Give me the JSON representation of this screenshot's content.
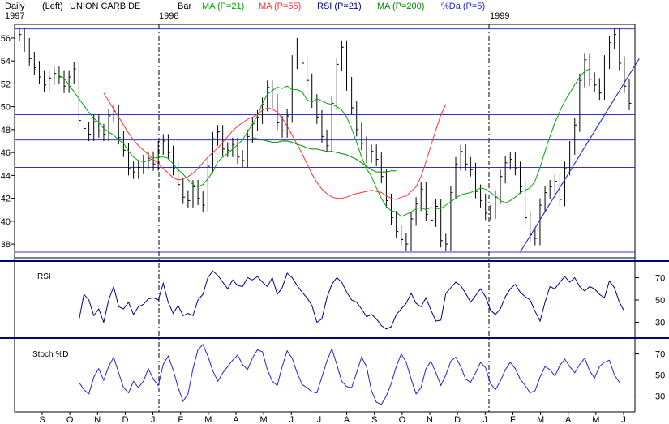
{
  "header": {
    "daily": "Daily",
    "side": "(Left)",
    "symbol": "UNION CARBIDE",
    "bar": "Bar",
    "ma21": "MA (P=21)",
    "ma55": "MA (P=55)",
    "rsi": "RSI (P=21)",
    "ma200": "MA (P=200)",
    "stoch": "%Da (P=5)"
  },
  "years": [
    "1997",
    "1998",
    "1999"
  ],
  "months": [
    "S",
    "O",
    "N",
    "D",
    "J",
    "F",
    "M",
    "A",
    "M",
    "J",
    "J",
    "A",
    "S",
    "O",
    "N",
    "D",
    "J",
    "F",
    "M",
    "A",
    "M",
    "J"
  ],
  "colors": {
    "price": "#000000",
    "ma21": "#00aa00",
    "ma55": "#ff3333",
    "ma200": "#008800",
    "rsi": "#000088",
    "stoch": "#2222dd",
    "trend": "#3333cc",
    "hline": "#3333cc",
    "divider": "#000080"
  },
  "chart_data": [
    {
      "type": "line",
      "panel": "price",
      "title": "UNION CARBIDE",
      "x_labels": [
        "S",
        "O",
        "N",
        "D",
        "J",
        "F",
        "M",
        "A",
        "M",
        "J",
        "J",
        "A",
        "S",
        "O",
        "N",
        "D",
        "J",
        "F",
        "M",
        "A",
        "M",
        "J"
      ],
      "y_ticks": [
        38,
        40,
        42,
        44,
        46,
        48,
        50,
        52,
        54,
        56
      ],
      "ylim": [
        36.8,
        57.2
      ],
      "horizontal_lines": [
        56.8,
        49.3,
        47.1,
        44.7,
        37.3
      ],
      "series": [
        {
          "name": "Bar",
          "kind": "close",
          "values": [
            56.3,
            55.4,
            54.2,
            53.4,
            52.6,
            51.9,
            52.5,
            52.9,
            52.6,
            51.8,
            52.6,
            53.3,
            48.8,
            48.1,
            47.6,
            48.7,
            47.9,
            47.6,
            49.2,
            49.6,
            47.3,
            46.2,
            44.6,
            44.3,
            44.7,
            45.2,
            45.5,
            45.0,
            46.4,
            47.0,
            46.0,
            44.6,
            43.2,
            42.1,
            41.8,
            43.0,
            42.0,
            41.4,
            44.8,
            47.2,
            47.8,
            46.3,
            46.2,
            46.7,
            45.6,
            45.3,
            47.4,
            48.5,
            49.1,
            50.2,
            51.7,
            50.5,
            48.6,
            47.9,
            49.2,
            53.9,
            55.4,
            53.8,
            52.3,
            50.5,
            49.1,
            47.4,
            46.6,
            50.3,
            53.7,
            55.2,
            52.0,
            49.9,
            48.0,
            46.8,
            45.7,
            46.1,
            45.4,
            43.9,
            41.8,
            40.3,
            39.1,
            38.4,
            38.0,
            40.2,
            41.5,
            42.8,
            40.6,
            40.1,
            41.3,
            38.3,
            38.0,
            42.5,
            45.0,
            46.1,
            45.0,
            44.5,
            42.6,
            41.8,
            40.7,
            40.8,
            42.1,
            43.9,
            45.1,
            45.4,
            44.6,
            43.0,
            40.3,
            38.8,
            38.5,
            41.4,
            42.5,
            43.0,
            43.5,
            41.9,
            44.6,
            46.4,
            48.4,
            52.3,
            54.1,
            52.4,
            51.9,
            51.2,
            53.9,
            55.6,
            56.3,
            53.8,
            51.8,
            50.3
          ]
        },
        {
          "name": "MA (P=21)",
          "values": [
            null,
            null,
            null,
            null,
            null,
            null,
            null,
            null,
            52.7,
            52.5,
            51.9,
            51.3,
            50.7,
            50.1,
            49.5,
            49.0,
            48.6,
            48.1,
            47.8,
            47.5,
            47.1,
            46.8,
            46.1,
            45.6,
            45.3,
            45.2,
            45.3,
            45.5,
            45.6,
            45.6,
            45.5,
            45.0,
            44.5,
            44.1,
            43.6,
            43.2,
            43.0,
            43.2,
            43.7,
            44.3,
            45.2,
            45.6,
            45.9,
            46.3,
            46.7,
            47.1,
            47.8,
            48.5,
            49.2,
            50.3,
            51.1,
            51.4,
            51.7,
            51.6,
            51.8,
            51.5,
            51.5,
            51.3,
            50.6,
            50.4,
            50.7,
            50.5,
            50.3,
            50.2,
            50.0,
            49.7,
            49.1,
            48.1,
            46.9,
            45.6,
            44.6,
            43.9,
            42.9,
            42.0,
            41.3,
            40.9,
            40.8,
            40.4,
            40.6,
            40.8,
            41.1,
            41.2,
            41.0,
            41.2,
            41.1,
            41.1,
            41.4,
            41.7,
            42.0,
            42.3,
            42.4,
            42.5,
            42.7,
            42.9,
            42.8,
            42.5,
            42.2,
            41.8,
            41.6,
            41.8,
            42.1,
            42.5,
            42.7,
            42.9,
            43.5,
            44.7,
            46.1,
            47.4,
            48.6,
            49.6,
            50.5,
            51.2,
            51.9,
            52.6,
            53.1,
            53.3
          ]
        },
        {
          "name": "MA (P=55)",
          "values": [
            null,
            null,
            null,
            null,
            null,
            null,
            null,
            null,
            null,
            null,
            null,
            null,
            null,
            null,
            null,
            null,
            null,
            51.2,
            50.5,
            49.8,
            49.1,
            48.4,
            47.7,
            47.1,
            46.6,
            46.2,
            45.8,
            45.4,
            45.0,
            44.6,
            44.2,
            43.8,
            43.6,
            43.7,
            43.9,
            44.2,
            44.6,
            45.1,
            45.6,
            46.0,
            46.4,
            46.9,
            47.4,
            47.9,
            48.3,
            48.6,
            48.9,
            49.1,
            49.3,
            49.7,
            49.9,
            49.8,
            49.5,
            49.0,
            48.3,
            47.5,
            46.7,
            45.9,
            45.0,
            44.1,
            43.4,
            42.8,
            42.4,
            42.1,
            42.0,
            42.0,
            42.1,
            42.3,
            42.4,
            42.5,
            42.6,
            42.7,
            42.6,
            42.5,
            42.2,
            42.0,
            41.9,
            42.1,
            42.2,
            42.6,
            43.0,
            43.9,
            45.2,
            46.6,
            48.0,
            49.3,
            50.2
          ]
        },
        {
          "name": "MA (P=200)",
          "values": [
            null,
            null,
            null,
            null,
            null,
            null,
            null,
            null,
            null,
            null,
            null,
            null,
            null,
            null,
            null,
            null,
            null,
            null,
            null,
            null,
            null,
            null,
            null,
            null,
            null,
            null,
            null,
            null,
            null,
            null,
            null,
            null,
            null,
            null,
            null,
            null,
            null,
            null,
            null,
            null,
            null,
            null,
            null,
            null,
            null,
            null,
            null,
            47.3,
            47.2,
            47.1,
            47.0,
            46.9,
            46.9,
            47.0,
            47.0,
            46.9,
            46.7,
            46.6,
            46.4,
            46.3,
            46.3,
            46.2,
            46.1,
            46.1,
            46.0,
            45.9,
            45.8,
            45.6,
            45.4,
            45.1,
            44.8,
            44.5,
            44.3,
            44.3,
            44.3,
            44.4,
            44.4
          ]
        }
      ],
      "trendlines": [
        {
          "from": [
            101,
            37.3
          ],
          "to": [
            125,
            54.2
          ]
        }
      ]
    },
    {
      "type": "line",
      "panel": "rsi",
      "title": "RSI",
      "y_ticks": [
        30,
        50,
        70
      ],
      "ylim": [
        18,
        82
      ],
      "series": [
        {
          "name": "RSI",
          "values": [
            null,
            null,
            null,
            null,
            null,
            null,
            null,
            null,
            null,
            null,
            null,
            null,
            32,
            55,
            50,
            36,
            42,
            30,
            50,
            62,
            44,
            42,
            48,
            37,
            44,
            46,
            51,
            52,
            50,
            65,
            48,
            38,
            45,
            36,
            38,
            36,
            50,
            55,
            70,
            76,
            72,
            66,
            60,
            68,
            63,
            62,
            70,
            68,
            71,
            66,
            62,
            70,
            55,
            61,
            74,
            70,
            63,
            57,
            52,
            45,
            30,
            33,
            52,
            64,
            70,
            66,
            57,
            50,
            48,
            42,
            35,
            37,
            33,
            27,
            24,
            26,
            37,
            42,
            47,
            56,
            47,
            44,
            52,
            41,
            31,
            32,
            56,
            61,
            66,
            63,
            56,
            48,
            54,
            60,
            53,
            41,
            37,
            42,
            53,
            60,
            64,
            57,
            53,
            50,
            40,
            31,
            48,
            62,
            60,
            66,
            71,
            66,
            70,
            62,
            58,
            62,
            60,
            55,
            52,
            67,
            61,
            48,
            40
          ]
        }
      ]
    },
    {
      "type": "line",
      "panel": "stochastic",
      "title": "Stoch %D",
      "y_ticks": [
        30,
        50,
        70
      ],
      "ylim": [
        18,
        82
      ],
      "series": [
        {
          "name": "%D",
          "values": [
            null,
            null,
            null,
            null,
            null,
            null,
            null,
            null,
            null,
            null,
            null,
            null,
            43,
            36,
            32,
            48,
            56,
            45,
            58,
            67,
            52,
            38,
            33,
            44,
            38,
            44,
            56,
            46,
            40,
            60,
            68,
            55,
            38,
            25,
            32,
            56,
            74,
            79,
            68,
            54,
            44,
            52,
            58,
            64,
            69,
            60,
            55,
            66,
            74,
            72,
            55,
            44,
            40,
            58,
            73,
            66,
            52,
            41,
            38,
            34,
            33,
            48,
            63,
            75,
            60,
            44,
            39,
            38,
            52,
            67,
            58,
            35,
            24,
            22,
            30,
            42,
            58,
            70,
            62,
            46,
            32,
            38,
            56,
            63,
            52,
            40,
            50,
            63,
            67,
            58,
            46,
            43,
            52,
            62,
            57,
            42,
            36,
            44,
            55,
            62,
            56,
            46,
            40,
            33,
            35,
            48,
            58,
            55,
            49,
            59,
            65,
            58,
            52,
            60,
            66,
            54,
            47,
            58,
            62,
            64,
            50,
            43
          ]
        }
      ]
    }
  ]
}
